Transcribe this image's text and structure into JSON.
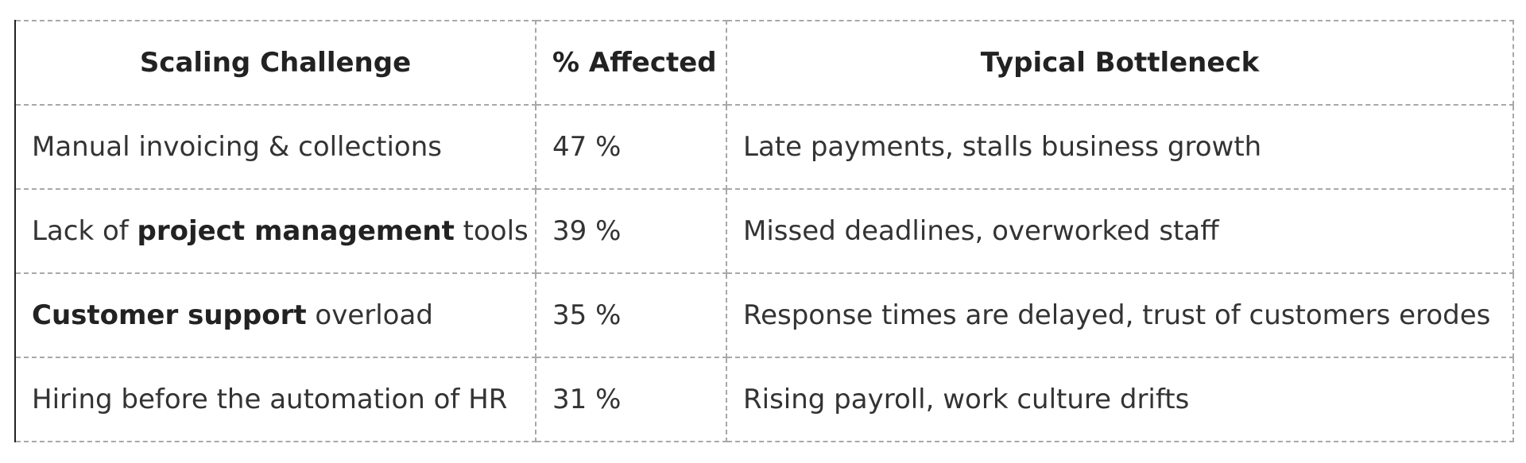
{
  "table": {
    "headers": [
      "Scaling Challenge",
      "% Affected",
      "Typical Bottleneck"
    ],
    "rows": [
      {
        "challenge": {
          "pre": "Manual invoicing & collections",
          "bold": "",
          "post": ""
        },
        "affected": "47 %",
        "bottleneck": "Late payments, stalls business growth"
      },
      {
        "challenge": {
          "pre": "Lack of ",
          "bold": "project management",
          "post": " tools"
        },
        "affected": "39 %",
        "bottleneck": "Missed deadlines, overworked staff"
      },
      {
        "challenge": {
          "pre": "",
          "bold": "Customer support",
          "post": " overload"
        },
        "affected": "35 %",
        "bottleneck": "Response times are delayed, trust of customers erodes"
      },
      {
        "challenge": {
          "pre": "Hiring before the automation of HR",
          "bold": "",
          "post": ""
        },
        "affected": "31 %",
        "bottleneck": "Rising payroll, work culture drifts"
      }
    ]
  },
  "colors": {
    "text": "#333333",
    "border": "#a8a8a8",
    "left_border": "#222222"
  }
}
